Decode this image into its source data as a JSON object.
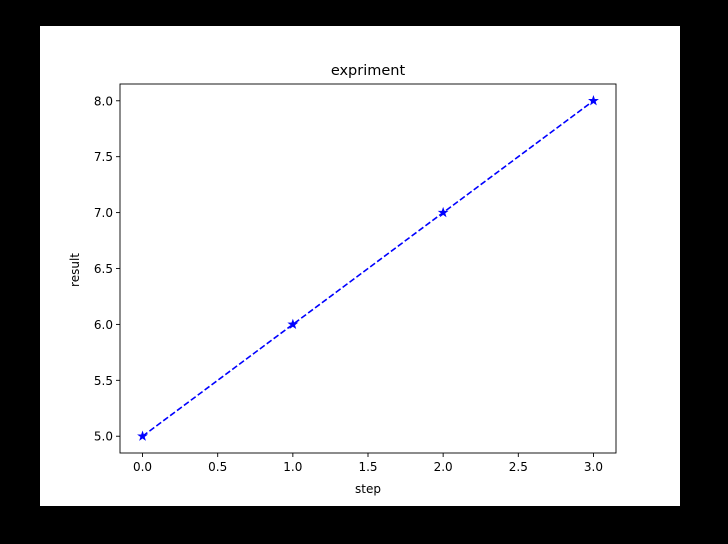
{
  "chart_data": {
    "type": "line",
    "title": "expriment",
    "xlabel": "step",
    "ylabel": "result",
    "xlim": [
      -0.15,
      3.15
    ],
    "ylim": [
      4.85,
      8.15
    ],
    "xticks": [
      0.0,
      0.5,
      1.0,
      1.5,
      2.0,
      2.5,
      3.0
    ],
    "xtick_labels": [
      "0.0",
      "0.5",
      "1.0",
      "1.5",
      "2.0",
      "2.5",
      "3.0"
    ],
    "yticks": [
      5.0,
      5.5,
      6.0,
      6.5,
      7.0,
      7.5,
      8.0
    ],
    "ytick_labels": [
      "5.0",
      "5.5",
      "6.0",
      "6.5",
      "7.0",
      "7.5",
      "8.0"
    ],
    "grid": false,
    "legend": null,
    "series": [
      {
        "x": [
          0,
          1,
          2,
          3
        ],
        "y": [
          5,
          6,
          7,
          8
        ],
        "color": "#0000ff",
        "linestyle": "dashed",
        "marker": "star"
      }
    ]
  }
}
